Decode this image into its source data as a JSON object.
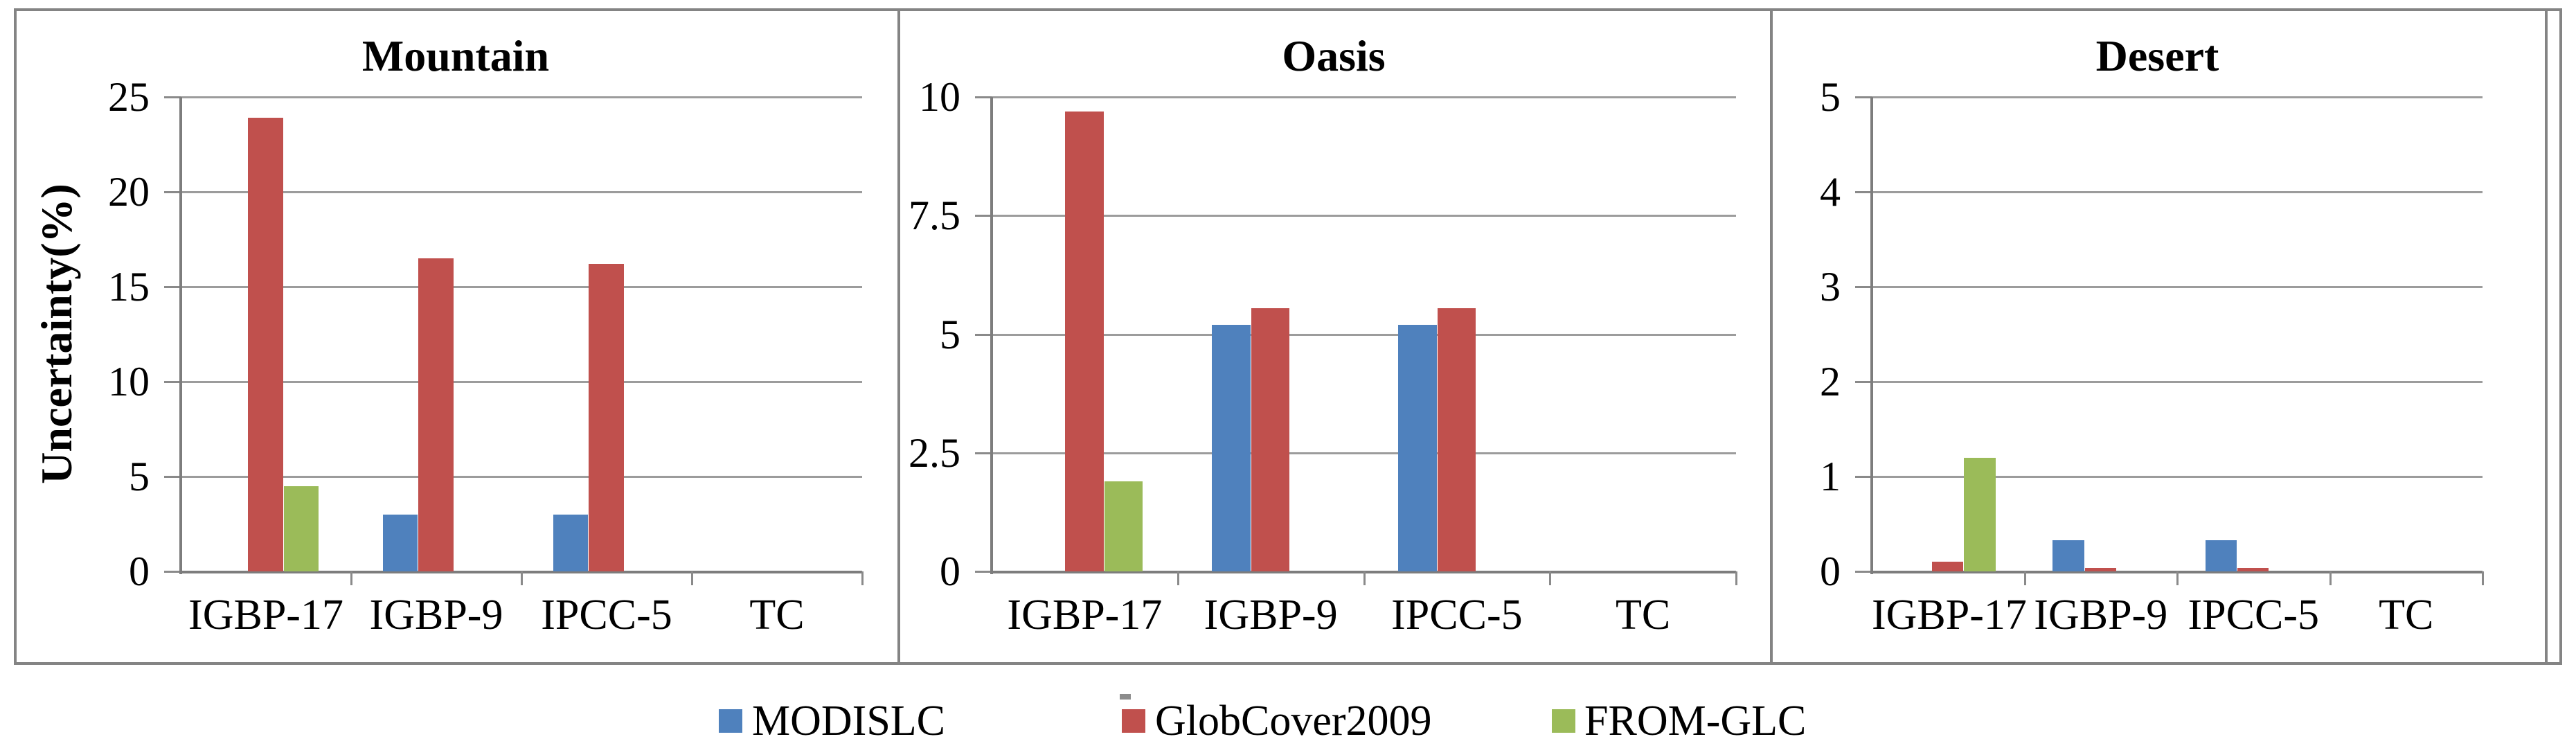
{
  "figure": {
    "ylabel": "Uncertainty(%)",
    "legend": [
      {
        "label": "MODISLC",
        "color": "#4F81BD"
      },
      {
        "label": "GlobCover2009",
        "color": "#C0504D"
      },
      {
        "label": "FROM-GLC",
        "color": "#9BBB59"
      }
    ],
    "colors": {
      "bar_blue": "#4F81BD",
      "bar_red": "#C0504D",
      "bar_green": "#9BBB59",
      "panel_border": "#848484",
      "gridline": "#9c9c9c",
      "axis": "#7d7d7d",
      "text": "#000000"
    }
  },
  "chart_data": [
    {
      "type": "bar",
      "title": "Mountain",
      "categories": [
        "IGBP-17",
        "IGBP-9",
        "IPCC-5",
        "TC"
      ],
      "series": [
        {
          "name": "MODISLC",
          "color": "#4F81BD",
          "values": [
            0,
            3.0,
            3.0,
            0
          ]
        },
        {
          "name": "GlobCover2009",
          "color": "#C0504D",
          "values": [
            23.9,
            16.5,
            16.2,
            0
          ]
        },
        {
          "name": "FROM-GLC",
          "color": "#9BBB59",
          "values": [
            4.5,
            0,
            0,
            0
          ]
        }
      ],
      "xlabel": "",
      "ylabel": "Uncertainty(%)",
      "ylim": [
        0,
        25
      ],
      "yticks": [
        0,
        5,
        10,
        15,
        20,
        25
      ],
      "grid": true,
      "legend_position": "bottom"
    },
    {
      "type": "bar",
      "title": "Oasis",
      "categories": [
        "IGBP-17",
        "IGBP-9",
        "IPCC-5",
        "TC"
      ],
      "series": [
        {
          "name": "MODISLC",
          "color": "#4F81BD",
          "values": [
            0,
            5.2,
            5.2,
            0
          ]
        },
        {
          "name": "GlobCover2009",
          "color": "#C0504D",
          "values": [
            9.7,
            5.55,
            5.55,
            0
          ]
        },
        {
          "name": "FROM-GLC",
          "color": "#9BBB59",
          "values": [
            1.9,
            0,
            0,
            0
          ]
        }
      ],
      "xlabel": "",
      "ylabel": "",
      "ylim": [
        0,
        10
      ],
      "yticks": [
        0,
        2.5,
        5,
        7.5,
        10
      ],
      "grid": true,
      "legend_position": "bottom"
    },
    {
      "type": "bar",
      "title": "Desert",
      "categories": [
        "IGBP-17",
        "IGBP-9",
        "IPCC-5",
        "TC"
      ],
      "series": [
        {
          "name": "MODISLC",
          "color": "#4F81BD",
          "values": [
            0,
            0.33,
            0.33,
            0
          ]
        },
        {
          "name": "GlobCover2009",
          "color": "#C0504D",
          "values": [
            0.1,
            0.04,
            0.04,
            0
          ]
        },
        {
          "name": "FROM-GLC",
          "color": "#9BBB59",
          "values": [
            1.2,
            0,
            0,
            0
          ]
        }
      ],
      "xlabel": "",
      "ylabel": "",
      "ylim": [
        0,
        5
      ],
      "yticks": [
        0,
        1,
        2,
        3,
        4,
        5
      ],
      "grid": true,
      "legend_position": "bottom"
    }
  ]
}
